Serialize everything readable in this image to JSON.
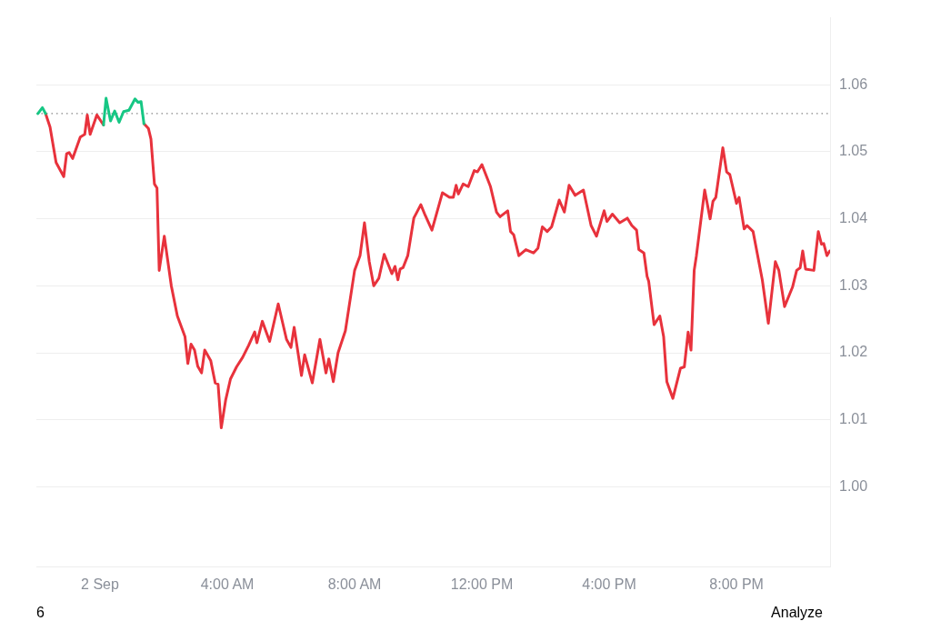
{
  "chart_data": {
    "type": "line",
    "x": [
      1.38,
      1.52,
      1.6,
      1.71,
      1.79,
      1.86,
      2.02,
      2.24,
      2.43,
      2.67,
      2.76,
      2.86,
      2.97,
      3.07,
      3.19,
      3.29,
      3.48,
      3.62,
      3.71,
      3.81,
      3.95,
      4.1,
      4.29,
      4.48,
      4.67,
      4.86,
      4.93,
      5.1,
      5.33,
      5.6,
      5.86,
      6.0,
      6.1,
      6.33,
      6.43,
      6.67,
      6.91,
      7.1,
      7.19,
      7.33,
      7.48,
      7.71,
      8.0,
      8.17,
      8.31,
      8.46,
      8.6,
      8.76,
      8.93,
      9.17,
      9.27,
      9.36,
      9.43,
      9.52,
      9.67,
      9.86,
      10.08,
      10.22,
      10.43,
      10.76,
      10.98,
      11.1,
      11.19,
      11.26,
      11.41,
      11.57,
      11.76,
      11.86,
      12.0,
      12.27,
      12.46,
      12.57,
      12.81,
      12.9,
      13.0,
      13.16,
      13.38,
      13.62,
      13.76,
      13.9,
      14.05,
      14.19,
      14.43,
      14.59,
      14.74,
      14.93,
      15.19,
      15.43,
      15.6,
      15.84,
      15.93,
      16.1,
      16.33,
      16.57,
      16.71,
      16.86,
      16.93,
      17.09,
      17.19,
      17.24,
      17.41,
      17.59,
      17.71,
      17.81,
      18.0,
      18.24,
      18.36,
      18.48,
      18.57,
      18.67,
      18.74,
      19.0,
      19.17,
      19.26,
      19.35,
      19.57,
      19.69,
      19.79,
      20.0,
      20.08,
      20.24,
      20.33,
      20.52,
      20.81,
      21.0,
      21.22,
      21.33,
      21.51,
      21.76,
      21.89,
      22.0,
      22.08,
      22.17,
      22.43,
      22.57,
      22.67,
      22.74,
      22.84,
      22.93
    ],
    "series": [
      {
        "color": "#e8323c",
        "x": [
          -1.71,
          -1.57,
          -1.38,
          -1.14,
          -1.05,
          -0.97,
          -0.86,
          -0.62,
          -0.48,
          -0.4,
          -0.31,
          -0.1,
          0.11
        ],
        "values": [
          1.0557,
          1.0537,
          1.0484,
          1.0463,
          1.0497,
          1.0499,
          1.049,
          1.0522,
          1.0526,
          1.0555,
          1.0526,
          1.0555,
          1.054
        ]
      },
      {
        "color": "#e8323c",
        "values": [
          1.0542,
          1.0535,
          1.0519,
          1.0452,
          1.0446,
          1.0323,
          1.0374,
          1.03,
          1.0255,
          1.0224,
          1.0184,
          1.0213,
          1.0204,
          1.018,
          1.017,
          1.0204,
          1.0188,
          1.0155,
          1.0153,
          1.0088,
          1.013,
          1.0161,
          1.0179,
          1.0193,
          1.0211,
          1.0231,
          1.0215,
          1.0247,
          1.0217,
          1.0273,
          1.022,
          1.0208,
          1.0238,
          1.0166,
          1.0197,
          1.0155,
          1.022,
          1.017,
          1.0191,
          1.0157,
          1.02,
          1.0233,
          1.0323,
          1.0345,
          1.0394,
          1.0336,
          1.03,
          1.0311,
          1.0347,
          1.0318,
          1.0329,
          1.0309,
          1.0325,
          1.0327,
          1.0345,
          1.0401,
          1.0421,
          1.0405,
          1.0383,
          1.0439,
          1.0432,
          1.0432,
          1.045,
          1.0437,
          1.0452,
          1.0448,
          1.0472,
          1.047,
          1.0481,
          1.0448,
          1.041,
          1.0403,
          1.0412,
          1.0381,
          1.0376,
          1.0345,
          1.0354,
          1.0349,
          1.0356,
          1.0388,
          1.0381,
          1.0388,
          1.0428,
          1.041,
          1.045,
          1.0435,
          1.0443,
          1.039,
          1.0374,
          1.0412,
          1.0396,
          1.0407,
          1.0394,
          1.0401,
          1.039,
          1.0383,
          1.0354,
          1.0349,
          1.0314,
          1.0307,
          1.0242,
          1.0255,
          1.0224,
          1.0157,
          1.0132,
          1.0177,
          1.0179,
          1.0231,
          1.0204,
          1.0323,
          1.0345,
          1.0443,
          1.04,
          1.0426,
          1.0432,
          1.0506,
          1.047,
          1.0466,
          1.0423,
          1.0432,
          1.0385,
          1.039,
          1.0381,
          1.0309,
          1.0244,
          1.0336,
          1.0323,
          1.0269,
          1.0298,
          1.0323,
          1.0327,
          1.0352,
          1.0325,
          1.0323,
          1.0381,
          1.0362,
          1.0363,
          1.0345,
          1.0352
        ]
      },
      {
        "type": "line",
        "color": "#16c784",
        "x": [
          -1.95,
          -1.81,
          -1.71,
          -1.6,
          0.11,
          0.19,
          0.33,
          0.46,
          0.6,
          0.74,
          0.91,
          1.1,
          1.19,
          1.29,
          1.38
        ],
        "values": [
          1.0557,
          1.0566,
          1.0557,
          null,
          1.054,
          1.058,
          1.0546,
          1.0561,
          1.0544,
          1.056,
          1.0562,
          1.0579,
          1.0574,
          1.0575,
          1.0542
        ]
      }
    ],
    "xlim": [
      -2,
      22.94
    ],
    "xticks": [
      {
        "value": 0,
        "label": "2 Sep"
      },
      {
        "value": 4,
        "label": "4:00 AM"
      },
      {
        "value": 8,
        "label": "8:00 AM"
      },
      {
        "value": 12,
        "label": "12:00 PM"
      },
      {
        "value": 16,
        "label": "4:00 PM"
      },
      {
        "value": 20,
        "label": "8:00 PM"
      }
    ],
    "ylim": [
      0.988,
      1.07
    ],
    "yticks": [
      {
        "value": 1.0,
        "label": "1.00"
      },
      {
        "value": 1.01,
        "label": "1.01"
      },
      {
        "value": 1.02,
        "label": "1.02"
      },
      {
        "value": 1.03,
        "label": "1.03"
      },
      {
        "value": 1.04,
        "label": "1.04"
      },
      {
        "value": 1.05,
        "label": "1.05"
      },
      {
        "value": 1.06,
        "label": "1.06"
      }
    ],
    "ref_lines": [
      {
        "axis": "y",
        "value": 1.0557,
        "color": "#888888",
        "line_style": "dotted"
      }
    ],
    "grid": "y",
    "legend": false,
    "marker": "none",
    "annotations": [
      "6",
      "Analyze"
    ]
  }
}
